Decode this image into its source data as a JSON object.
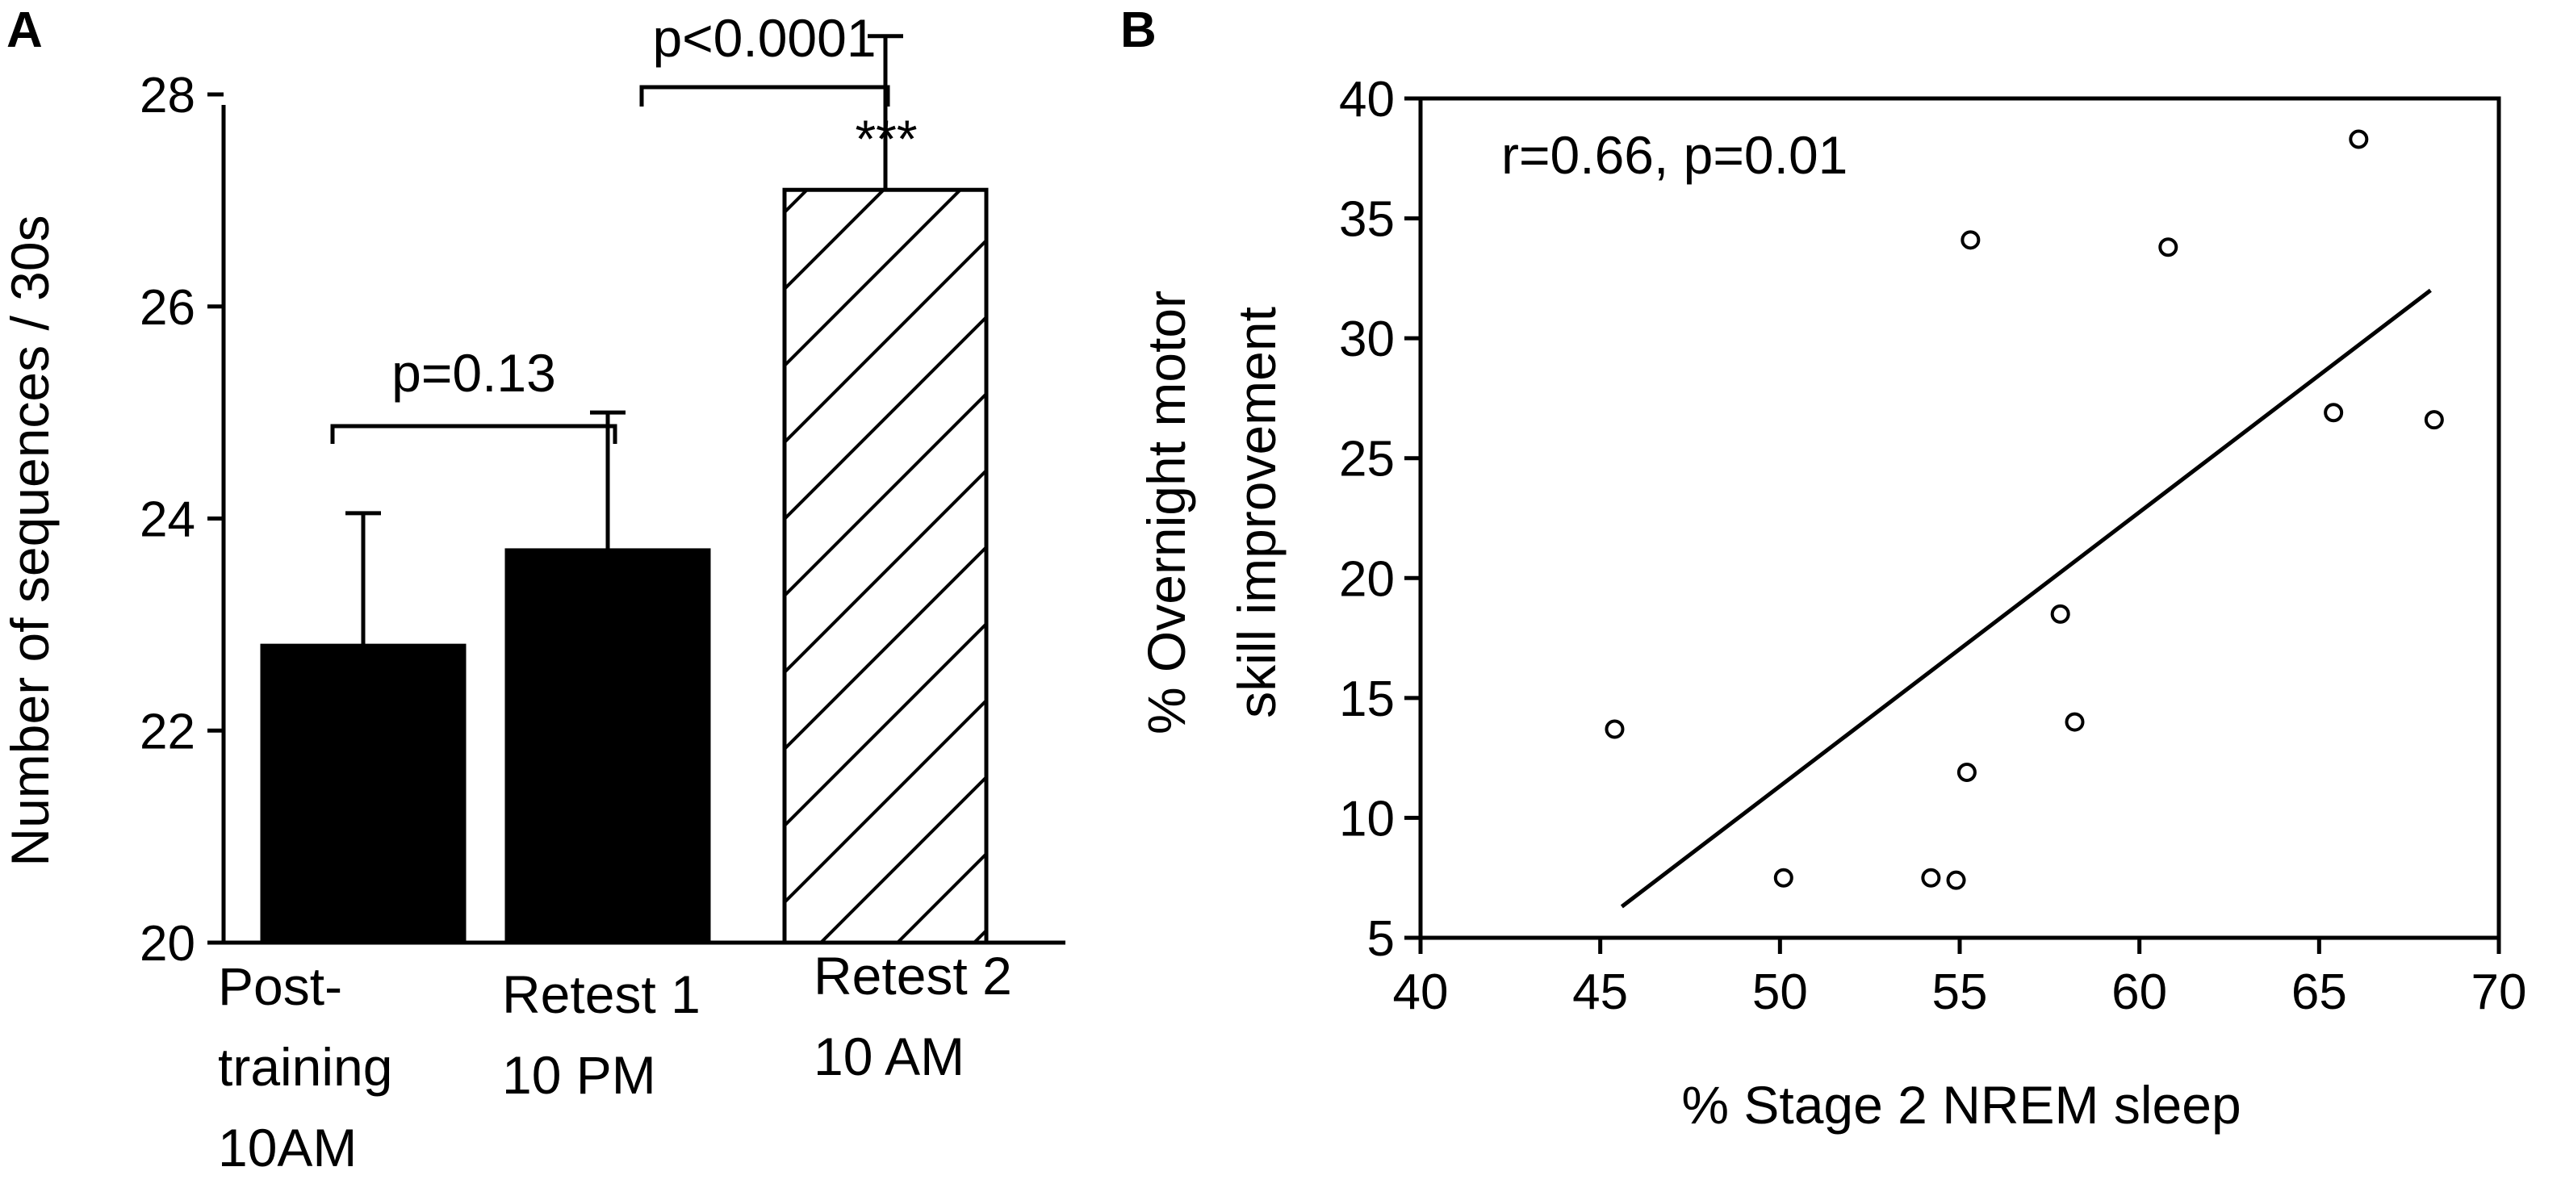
{
  "panels": {
    "a_letter": "A",
    "b_letter": "B"
  },
  "chart_data": [
    {
      "type": "bar",
      "panel": "A",
      "ylabel": "Number of sequences / 30s",
      "ylim": [
        20,
        29
      ],
      "yticks": [
        "20",
        "22",
        "24",
        "26",
        "28"
      ],
      "categories": [
        [
          "Post-",
          "training",
          "10AM"
        ],
        [
          "Retest 1",
          "10 PM"
        ],
        [
          "Retest 2",
          "10 AM"
        ]
      ],
      "values": [
        22.8,
        23.7,
        27.1
      ],
      "errors": [
        1.25,
        1.3,
        1.45
      ],
      "fills": [
        "solid",
        "solid",
        "hatched"
      ],
      "colors": {
        "bar": "#000000",
        "background": "#ffffff"
      },
      "annotations": {
        "comparison_1": "p=0.13",
        "comparison_2": "p<0.0001",
        "significance": "***"
      }
    },
    {
      "type": "scatter",
      "panel": "B",
      "xlabel": "% Stage 2 NREM sleep",
      "ylabel_line1": "% Overnight motor",
      "ylabel_line2": "skill improvement",
      "xlim": [
        40,
        70
      ],
      "ylim": [
        5,
        40
      ],
      "xticks": [
        "40",
        "45",
        "50",
        "55",
        "60",
        "65",
        "70"
      ],
      "yticks": [
        "5",
        "10",
        "15",
        "20",
        "25",
        "30",
        "35",
        "40"
      ],
      "points": [
        {
          "x": 45.4,
          "y": 13.7
        },
        {
          "x": 50.1,
          "y": 7.5
        },
        {
          "x": 54.2,
          "y": 7.5
        },
        {
          "x": 54.9,
          "y": 7.4
        },
        {
          "x": 55.2,
          "y": 11.9
        },
        {
          "x": 55.3,
          "y": 34.1
        },
        {
          "x": 57.8,
          "y": 18.5
        },
        {
          "x": 58.2,
          "y": 14.0
        },
        {
          "x": 60.8,
          "y": 33.8
        },
        {
          "x": 65.4,
          "y": 26.9
        },
        {
          "x": 66.1,
          "y": 38.3
        },
        {
          "x": 68.2,
          "y": 26.6
        }
      ],
      "fit_line": {
        "x": [
          45.6,
          68.1
        ],
        "y": [
          6.3,
          32.0
        ]
      },
      "annotation": "r=0.66, p=0.01"
    }
  ]
}
